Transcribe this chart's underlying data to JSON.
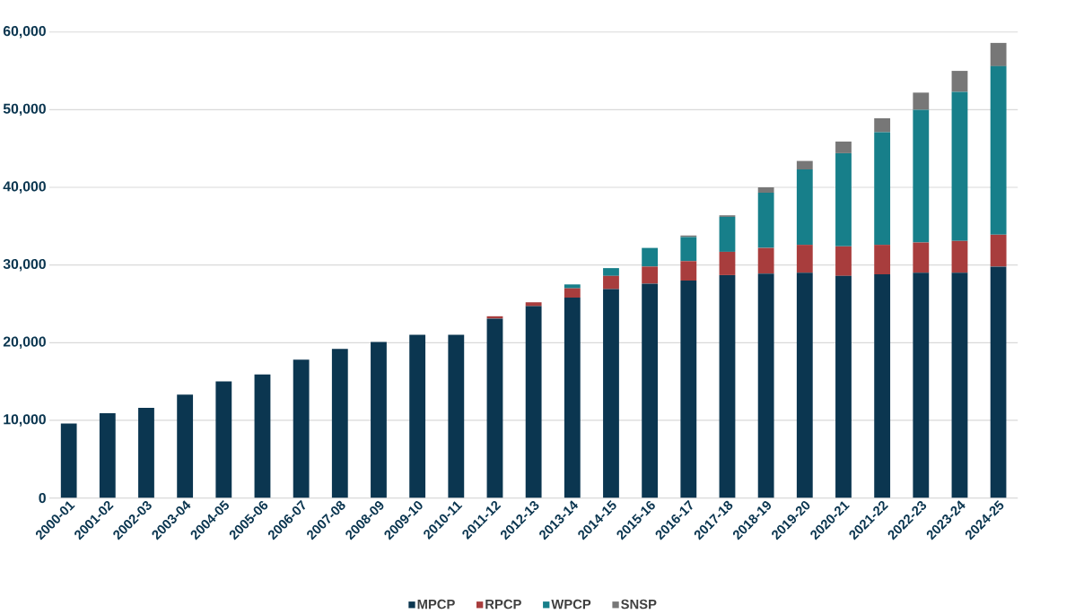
{
  "chart_data": {
    "type": "bar",
    "stacked": true,
    "categories": [
      "2000-01",
      "2001-02",
      "2002-03",
      "2003-04",
      "2004-05",
      "2005-06",
      "2006-07",
      "2007-08",
      "2008-09",
      "2009-10",
      "2010-11",
      "2011-12",
      "2012-13",
      "2013-14",
      "2014-15",
      "2015-16",
      "2016-17",
      "2017-18",
      "2018-19",
      "2019-20",
      "2020-21",
      "2021-22",
      "2022-23",
      "2023-24",
      "2024-25"
    ],
    "series": [
      {
        "name": "MPCP",
        "color": "#0b3650",
        "values": [
          9600,
          10900,
          11600,
          13300,
          15000,
          15900,
          17800,
          19200,
          20100,
          21000,
          21000,
          23100,
          24700,
          25800,
          26900,
          27600,
          28000,
          28700,
          28900,
          29000,
          28600,
          28800,
          29000,
          29000,
          29800
        ]
      },
      {
        "name": "RPCP",
        "color": "#a83d3d",
        "values": [
          null,
          null,
          null,
          null,
          null,
          null,
          null,
          null,
          null,
          null,
          null,
          300,
          500,
          1200,
          1700,
          2200,
          2500,
          3000,
          3300,
          3600,
          3800,
          3800,
          3900,
          4100,
          4100
        ]
      },
      {
        "name": "WPCP",
        "color": "#177f8a",
        "values": [
          null,
          null,
          null,
          null,
          null,
          null,
          null,
          null,
          null,
          null,
          null,
          null,
          null,
          500,
          1000,
          2400,
          3100,
          4500,
          7100,
          9700,
          12000,
          14500,
          17100,
          19200,
          21700
        ]
      },
      {
        "name": "SNSP",
        "color": "#777777",
        "values": [
          null,
          null,
          null,
          null,
          null,
          null,
          null,
          null,
          null,
          null,
          null,
          null,
          null,
          null,
          null,
          null,
          200,
          200,
          700,
          1100,
          1500,
          1800,
          2200,
          2700,
          3000
        ]
      }
    ],
    "ylim": [
      0,
      60000
    ],
    "yticks": [
      0,
      {
        "value": 10000,
        "label": "10,000"
      },
      {
        "value": 20000,
        "label": "20,000"
      },
      {
        "value": 30000,
        "label": "30,000"
      },
      {
        "value": 40000,
        "label": "40,000"
      },
      {
        "value": 50000,
        "label": "50,000"
      },
      {
        "value": 60000,
        "label": "60,000"
      }
    ],
    "grid": "y",
    "legend": "bottom"
  }
}
